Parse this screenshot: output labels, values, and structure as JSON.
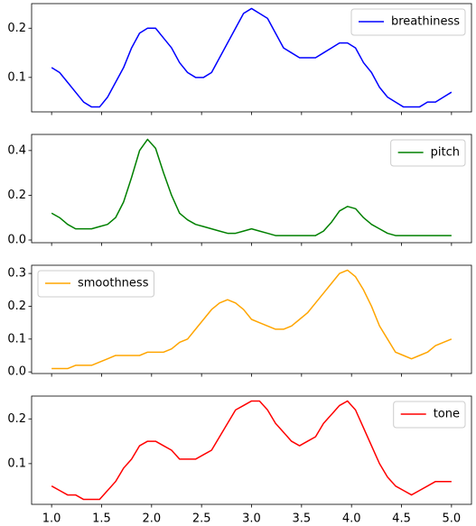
{
  "chart_data": [
    {
      "type": "line",
      "x": [
        1,
        1.08,
        1.16,
        1.24,
        1.32,
        1.4,
        1.48,
        1.56,
        1.64,
        1.72,
        1.8,
        1.88,
        1.96,
        2.04,
        2.12,
        2.2,
        2.28,
        2.36,
        2.44,
        2.52,
        2.6,
        2.68,
        2.76,
        2.84,
        2.92,
        3,
        3.08,
        3.16,
        3.24,
        3.32,
        3.4,
        3.48,
        3.56,
        3.64,
        3.72,
        3.8,
        3.88,
        3.96,
        4.04,
        4.12,
        4.2,
        4.28,
        4.36,
        4.44,
        4.52,
        4.6,
        4.68,
        4.76,
        4.84,
        4.92,
        5
      ],
      "series": [
        {
          "name": "breathiness",
          "color": "#0000ff",
          "values": [
            0.12,
            0.11,
            0.09,
            0.07,
            0.05,
            0.04,
            0.04,
            0.06,
            0.09,
            0.12,
            0.16,
            0.19,
            0.2,
            0.2,
            0.18,
            0.16,
            0.13,
            0.11,
            0.1,
            0.1,
            0.11,
            0.14,
            0.17,
            0.2,
            0.23,
            0.24,
            0.23,
            0.22,
            0.19,
            0.16,
            0.15,
            0.14,
            0.14,
            0.14,
            0.15,
            0.16,
            0.17,
            0.17,
            0.16,
            0.13,
            0.11,
            0.08,
            0.06,
            0.05,
            0.04,
            0.04,
            0.04,
            0.05,
            0.05,
            0.06,
            0.07
          ]
        }
      ],
      "xlim": [
        0.8,
        5.2
      ],
      "ylim": [
        0.03,
        0.25
      ],
      "yticks": [
        0.1,
        0.2
      ],
      "legend": "upper right"
    },
    {
      "type": "line",
      "x": [
        1,
        1.08,
        1.16,
        1.24,
        1.32,
        1.4,
        1.48,
        1.56,
        1.64,
        1.72,
        1.8,
        1.88,
        1.96,
        2.04,
        2.12,
        2.2,
        2.28,
        2.36,
        2.44,
        2.52,
        2.6,
        2.68,
        2.76,
        2.84,
        2.92,
        3,
        3.08,
        3.16,
        3.24,
        3.32,
        3.4,
        3.48,
        3.56,
        3.64,
        3.72,
        3.8,
        3.88,
        3.96,
        4.04,
        4.12,
        4.2,
        4.28,
        4.36,
        4.44,
        4.52,
        4.6,
        4.68,
        4.76,
        4.84,
        4.92,
        5
      ],
      "series": [
        {
          "name": "pitch",
          "color": "#008000",
          "values": [
            0.12,
            0.1,
            0.07,
            0.05,
            0.05,
            0.05,
            0.06,
            0.07,
            0.1,
            0.17,
            0.28,
            0.4,
            0.45,
            0.41,
            0.3,
            0.2,
            0.12,
            0.09,
            0.07,
            0.06,
            0.05,
            0.04,
            0.03,
            0.03,
            0.04,
            0.05,
            0.04,
            0.03,
            0.02,
            0.02,
            0.02,
            0.02,
            0.02,
            0.02,
            0.04,
            0.08,
            0.13,
            0.15,
            0.14,
            0.1,
            0.07,
            0.05,
            0.03,
            0.02,
            0.02,
            0.02,
            0.02,
            0.02,
            0.02,
            0.02,
            0.02
          ]
        }
      ],
      "xlim": [
        0.8,
        5.2
      ],
      "ylim": [
        -0.012,
        0.472
      ],
      "yticks": [
        {
          "value": 0,
          "label": "0.0"
        },
        0.2,
        0.4
      ],
      "legend": "upper right"
    },
    {
      "type": "line",
      "x": [
        1,
        1.08,
        1.16,
        1.24,
        1.32,
        1.4,
        1.48,
        1.56,
        1.64,
        1.72,
        1.8,
        1.88,
        1.96,
        2.04,
        2.12,
        2.2,
        2.28,
        2.36,
        2.44,
        2.52,
        2.6,
        2.68,
        2.76,
        2.84,
        2.92,
        3,
        3.08,
        3.16,
        3.24,
        3.32,
        3.4,
        3.48,
        3.56,
        3.64,
        3.72,
        3.8,
        3.88,
        3.96,
        4.04,
        4.12,
        4.2,
        4.28,
        4.36,
        4.44,
        4.52,
        4.6,
        4.68,
        4.76,
        4.84,
        4.92,
        5
      ],
      "series": [
        {
          "name": "smoothness",
          "color": "#ffa500",
          "values": [
            0.01,
            0.01,
            0.01,
            0.02,
            0.02,
            0.02,
            0.03,
            0.04,
            0.05,
            0.05,
            0.05,
            0.05,
            0.06,
            0.06,
            0.06,
            0.07,
            0.09,
            0.1,
            0.13,
            0.16,
            0.19,
            0.21,
            0.22,
            0.21,
            0.19,
            0.16,
            0.15,
            0.14,
            0.13,
            0.13,
            0.14,
            0.16,
            0.18,
            0.21,
            0.24,
            0.27,
            0.3,
            0.31,
            0.29,
            0.25,
            0.2,
            0.14,
            0.1,
            0.06,
            0.05,
            0.04,
            0.05,
            0.06,
            0.08,
            0.09,
            0.1
          ]
        }
      ],
      "xlim": [
        0.8,
        5.2
      ],
      "ylim": [
        -0.005,
        0.325
      ],
      "yticks": [
        {
          "value": 0,
          "label": "0.0"
        },
        0.1,
        0.2,
        0.3
      ],
      "legend": "upper left"
    },
    {
      "type": "line",
      "x": [
        1,
        1.08,
        1.16,
        1.24,
        1.32,
        1.4,
        1.48,
        1.56,
        1.64,
        1.72,
        1.8,
        1.88,
        1.96,
        2.04,
        2.12,
        2.2,
        2.28,
        2.36,
        2.44,
        2.52,
        2.6,
        2.68,
        2.76,
        2.84,
        2.92,
        3,
        3.08,
        3.16,
        3.24,
        3.32,
        3.4,
        3.48,
        3.56,
        3.64,
        3.72,
        3.8,
        3.88,
        3.96,
        4.04,
        4.12,
        4.2,
        4.28,
        4.36,
        4.44,
        4.52,
        4.6,
        4.68,
        4.76,
        4.84,
        4.92,
        5
      ],
      "series": [
        {
          "name": "tone",
          "color": "#ff0000",
          "values": [
            0.05,
            0.04,
            0.03,
            0.03,
            0.02,
            0.02,
            0.02,
            0.04,
            0.06,
            0.09,
            0.11,
            0.14,
            0.15,
            0.15,
            0.14,
            0.13,
            0.11,
            0.11,
            0.11,
            0.12,
            0.13,
            0.16,
            0.19,
            0.22,
            0.23,
            0.24,
            0.24,
            0.22,
            0.19,
            0.17,
            0.15,
            0.14,
            0.15,
            0.16,
            0.19,
            0.21,
            0.23,
            0.24,
            0.22,
            0.18,
            0.14,
            0.1,
            0.07,
            0.05,
            0.04,
            0.03,
            0.04,
            0.05,
            0.06,
            0.06,
            0.06
          ]
        }
      ],
      "xlim": [
        0.8,
        5.2
      ],
      "ylim": [
        0.009,
        0.251
      ],
      "yticks": [
        0.1,
        0.2
      ],
      "legend": "upper right",
      "xticks": [
        {
          "value": 1,
          "label": "1.0"
        },
        1.5,
        {
          "value": 2,
          "label": "2.0"
        },
        2.5,
        {
          "value": 3,
          "label": "3.0"
        },
        3.5,
        {
          "value": 4,
          "label": "4.0"
        },
        4.5,
        {
          "value": 5,
          "label": "5.0"
        }
      ]
    }
  ]
}
